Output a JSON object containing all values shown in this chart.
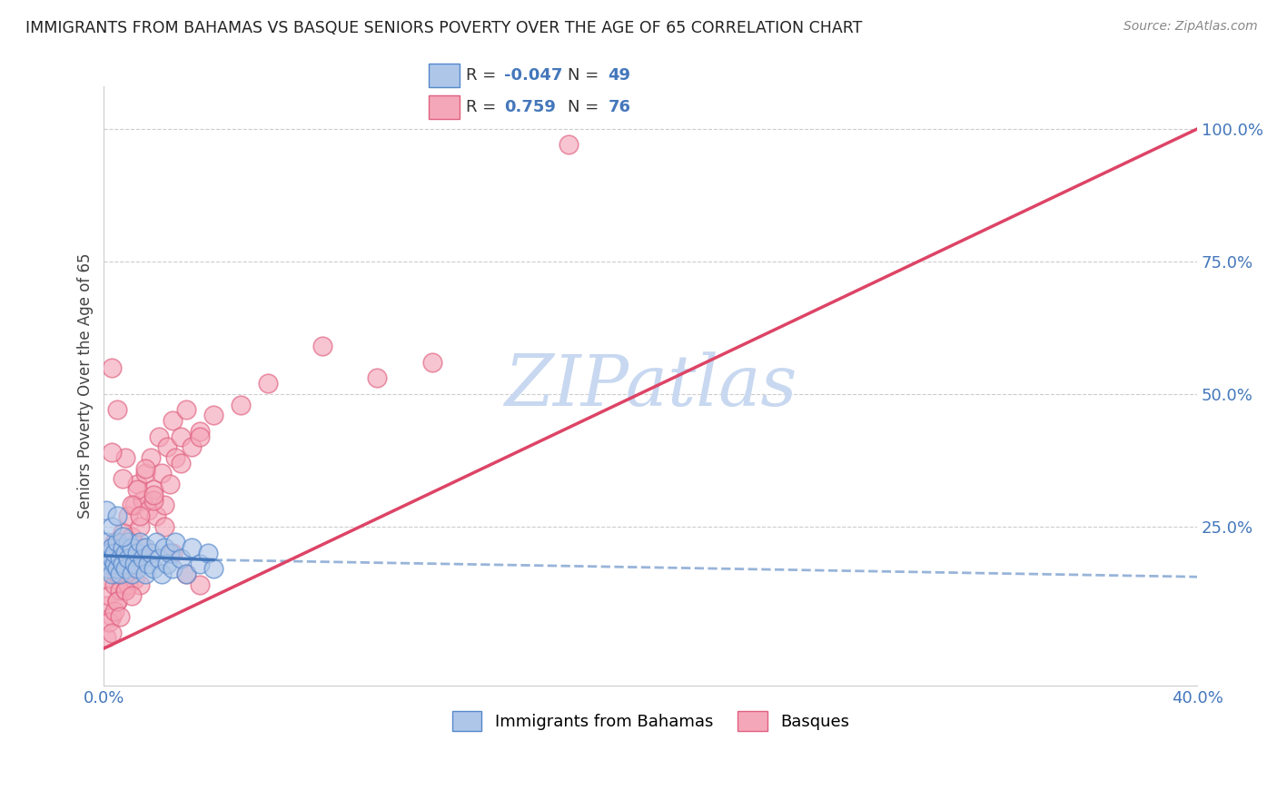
{
  "title": "IMMIGRANTS FROM BAHAMAS VS BASQUE SENIORS POVERTY OVER THE AGE OF 65 CORRELATION CHART",
  "source": "Source: ZipAtlas.com",
  "ylabel": "Seniors Poverty Over the Age of 65",
  "xlim": [
    0.0,
    0.4
  ],
  "ylim": [
    -0.05,
    1.08
  ],
  "xticks": [
    0.0,
    0.1,
    0.2,
    0.3,
    0.4
  ],
  "xtick_labels": [
    "0.0%",
    "",
    "",
    "",
    "40.0%"
  ],
  "ytick_positions": [
    0.0,
    0.25,
    0.5,
    0.75,
    1.0
  ],
  "ytick_labels": [
    "",
    "25.0%",
    "50.0%",
    "75.0%",
    "100.0%"
  ],
  "blue_R": -0.047,
  "blue_N": 49,
  "pink_R": 0.759,
  "pink_N": 76,
  "blue_color": "#AEC6E8",
  "pink_color": "#F4A7B9",
  "blue_edge_color": "#5588CC",
  "pink_edge_color": "#E06080",
  "blue_line_color": "#4477BB",
  "pink_line_color": "#DD4466",
  "watermark_color": "#C8D8F0",
  "watermark": "ZIPatlas",
  "legend_label_blue": "Immigrants from Bahamas",
  "legend_label_pink": "Basques",
  "blue_line_x0": 0.0,
  "blue_line_y0": 0.195,
  "blue_line_x1": 0.04,
  "blue_line_y1": 0.187,
  "blue_line_x_dash_end": 0.4,
  "blue_line_y_dash_end": 0.155,
  "pink_line_x0": 0.0,
  "pink_line_y0": 0.02,
  "pink_line_x1": 0.4,
  "pink_line_y1": 1.0,
  "blue_points_x": [
    0.001,
    0.001,
    0.002,
    0.002,
    0.003,
    0.003,
    0.003,
    0.004,
    0.004,
    0.005,
    0.005,
    0.006,
    0.006,
    0.007,
    0.007,
    0.008,
    0.008,
    0.009,
    0.009,
    0.01,
    0.01,
    0.011,
    0.012,
    0.012,
    0.013,
    0.014,
    0.015,
    0.015,
    0.016,
    0.017,
    0.018,
    0.019,
    0.02,
    0.021,
    0.022,
    0.023,
    0.024,
    0.025,
    0.026,
    0.028,
    0.03,
    0.032,
    0.035,
    0.038,
    0.04,
    0.001,
    0.003,
    0.005,
    0.007
  ],
  "blue_points_y": [
    0.18,
    0.22,
    0.17,
    0.2,
    0.19,
    0.16,
    0.21,
    0.18,
    0.2,
    0.17,
    0.22,
    0.19,
    0.16,
    0.21,
    0.18,
    0.2,
    0.17,
    0.22,
    0.19,
    0.16,
    0.21,
    0.18,
    0.2,
    0.17,
    0.22,
    0.19,
    0.16,
    0.21,
    0.18,
    0.2,
    0.17,
    0.22,
    0.19,
    0.16,
    0.21,
    0.18,
    0.2,
    0.17,
    0.22,
    0.19,
    0.16,
    0.21,
    0.18,
    0.2,
    0.17,
    0.28,
    0.25,
    0.27,
    0.23
  ],
  "pink_points_x": [
    0.001,
    0.001,
    0.002,
    0.002,
    0.003,
    0.003,
    0.004,
    0.004,
    0.005,
    0.005,
    0.006,
    0.006,
    0.007,
    0.007,
    0.008,
    0.008,
    0.009,
    0.009,
    0.01,
    0.01,
    0.011,
    0.011,
    0.012,
    0.012,
    0.013,
    0.013,
    0.014,
    0.014,
    0.015,
    0.016,
    0.017,
    0.018,
    0.019,
    0.02,
    0.021,
    0.022,
    0.023,
    0.024,
    0.025,
    0.026,
    0.028,
    0.03,
    0.032,
    0.035,
    0.04,
    0.05,
    0.06,
    0.08,
    0.1,
    0.12,
    0.003,
    0.005,
    0.008,
    0.012,
    0.015,
    0.018,
    0.022,
    0.028,
    0.035,
    0.001,
    0.002,
    0.003,
    0.004,
    0.005,
    0.006,
    0.008,
    0.01,
    0.17,
    0.003,
    0.007,
    0.01,
    0.013,
    0.018,
    0.025,
    0.03,
    0.035
  ],
  "pink_points_y": [
    0.1,
    0.15,
    0.12,
    0.18,
    0.08,
    0.2,
    0.14,
    0.22,
    0.16,
    0.11,
    0.19,
    0.13,
    0.24,
    0.16,
    0.2,
    0.13,
    0.27,
    0.14,
    0.23,
    0.18,
    0.29,
    0.15,
    0.33,
    0.19,
    0.25,
    0.14,
    0.3,
    0.21,
    0.35,
    0.28,
    0.38,
    0.32,
    0.27,
    0.42,
    0.35,
    0.29,
    0.4,
    0.33,
    0.45,
    0.38,
    0.42,
    0.47,
    0.4,
    0.43,
    0.46,
    0.48,
    0.52,
    0.59,
    0.53,
    0.56,
    0.55,
    0.47,
    0.38,
    0.32,
    0.36,
    0.3,
    0.25,
    0.37,
    0.42,
    0.04,
    0.07,
    0.05,
    0.09,
    0.11,
    0.08,
    0.13,
    0.12,
    0.97,
    0.39,
    0.34,
    0.29,
    0.27,
    0.31,
    0.2,
    0.16,
    0.14
  ]
}
